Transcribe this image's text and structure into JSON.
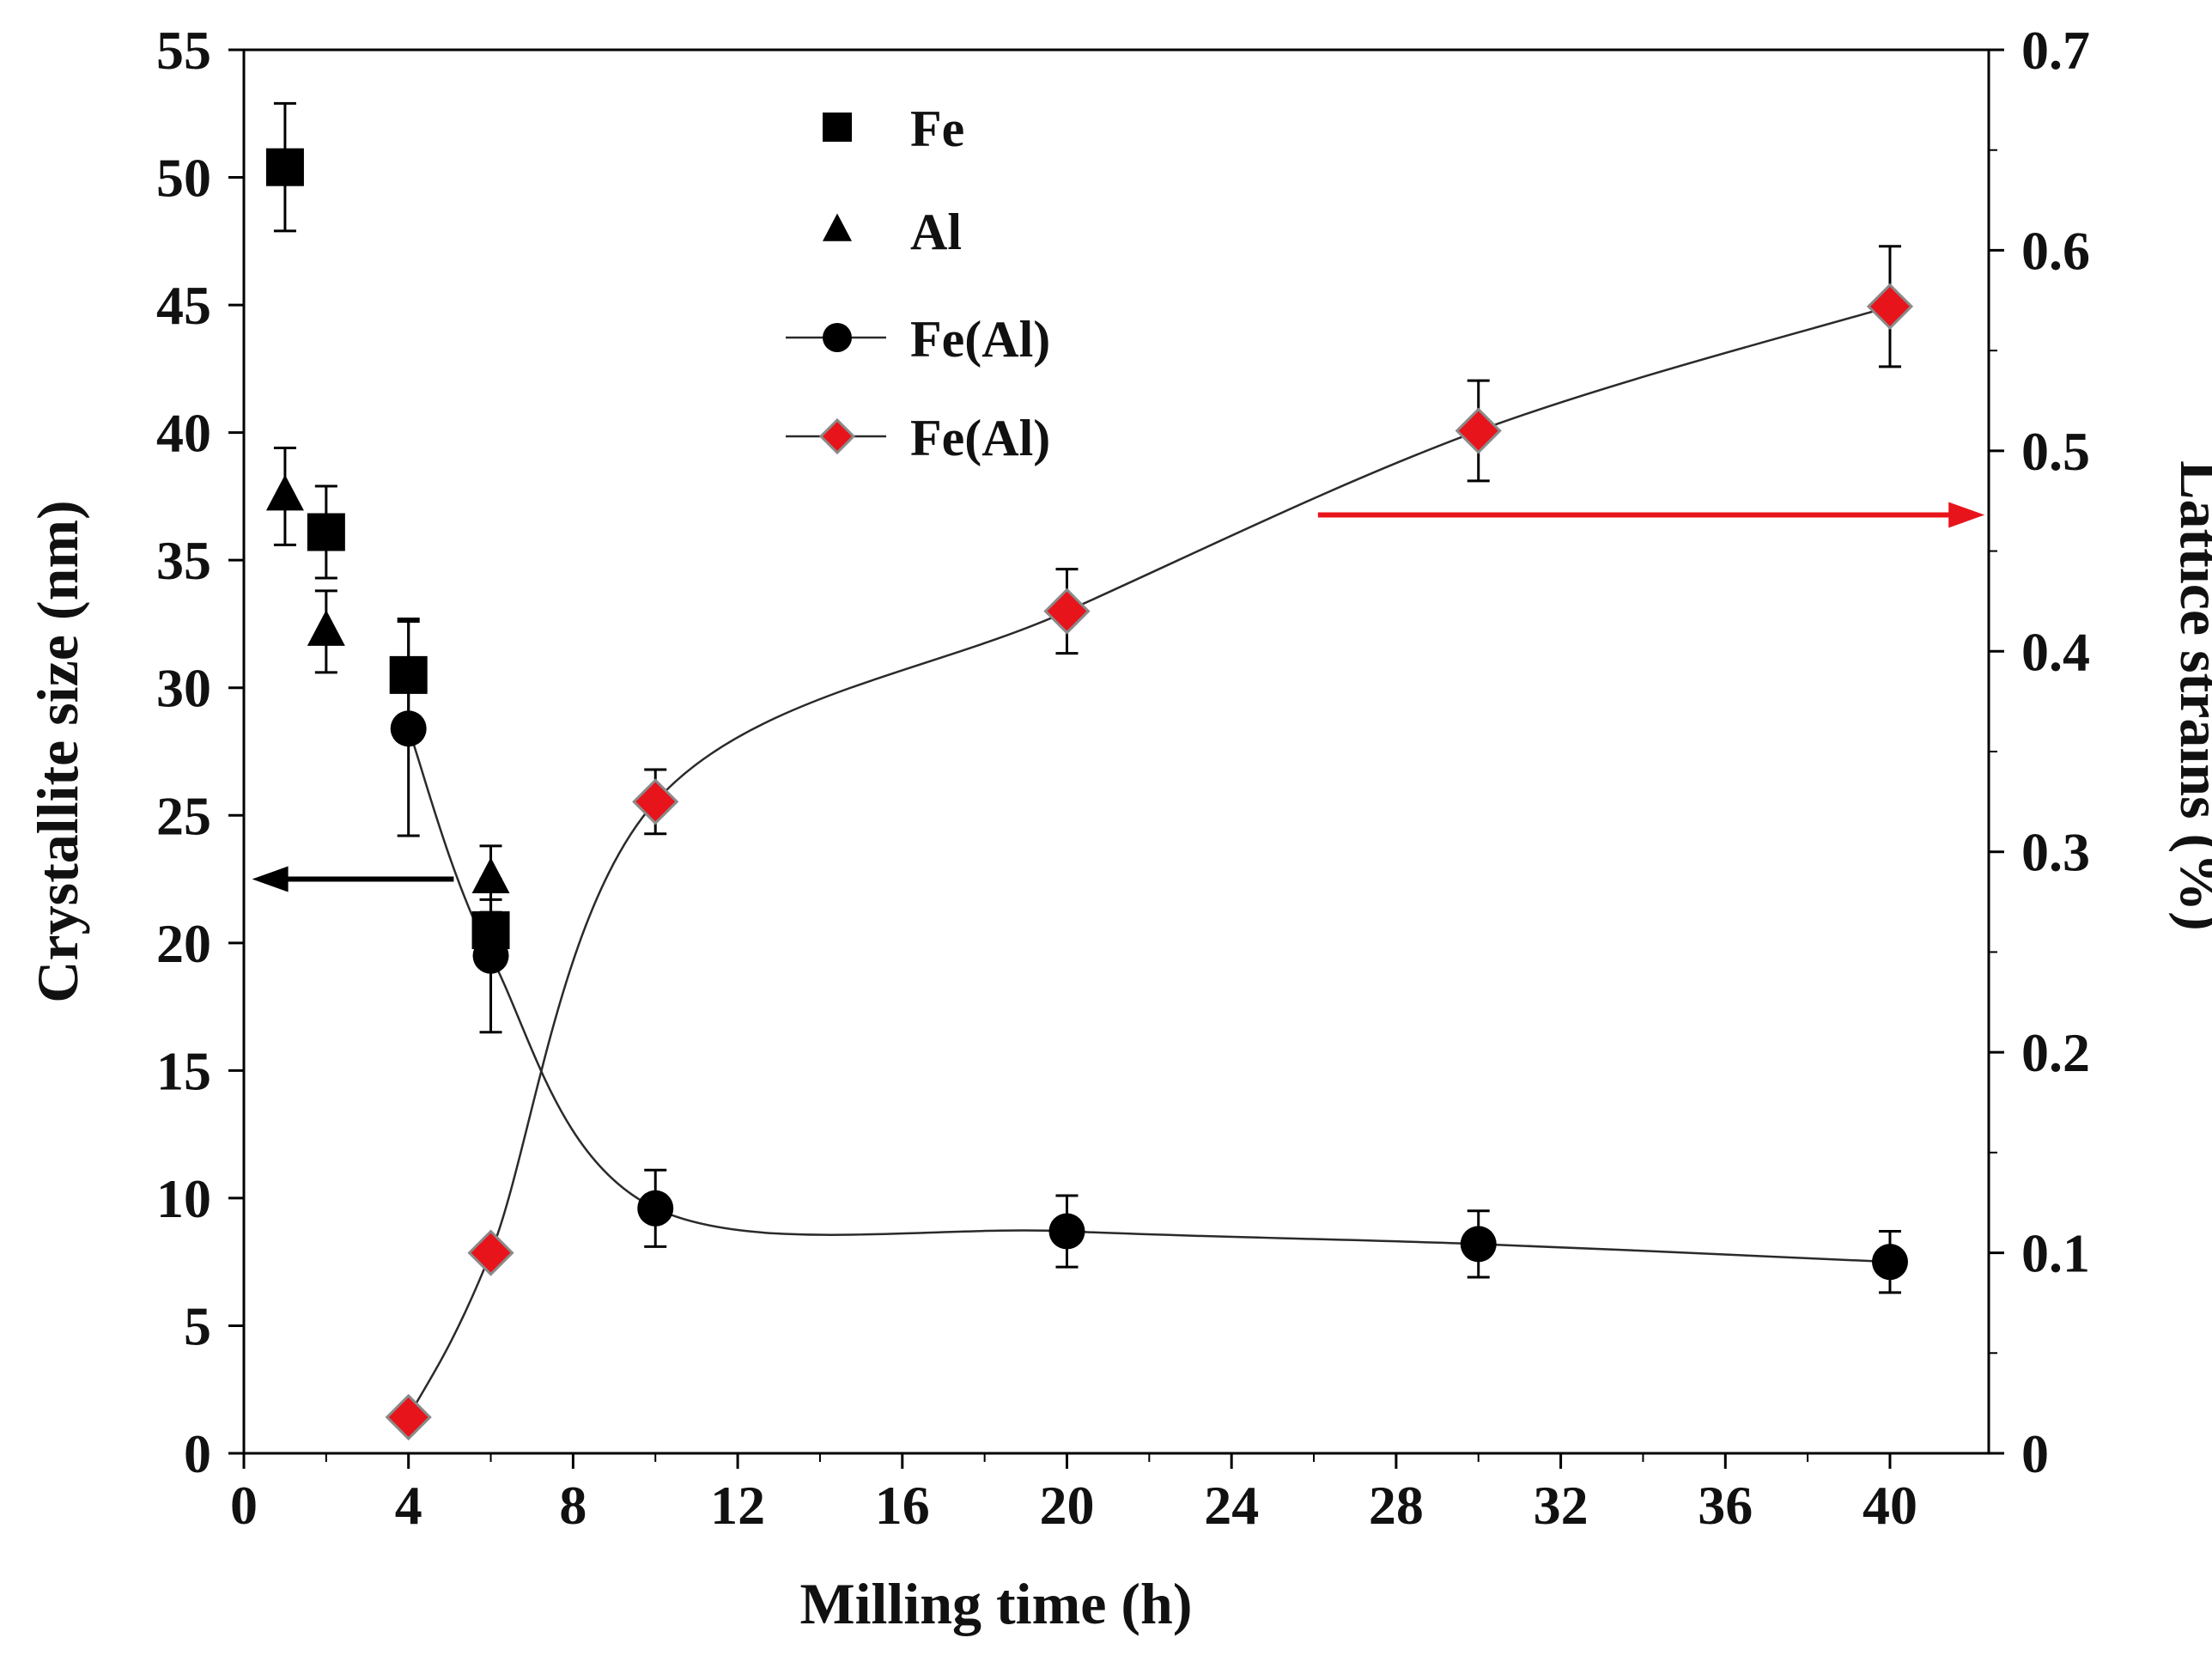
{
  "chart_data": {
    "type": "scatter",
    "xlabel": "Milling time (h)",
    "ylabel_left": "Crystallite size (nm)",
    "ylabel_right": "Lattice strains (%)",
    "xlim": [
      0,
      42.4
    ],
    "xticks": [
      0,
      4,
      8,
      12,
      16,
      20,
      24,
      28,
      32,
      36,
      40
    ],
    "ylim_left": [
      0,
      55
    ],
    "yticks_left": [
      0,
      5,
      10,
      15,
      20,
      25,
      30,
      35,
      40,
      45,
      50,
      55
    ],
    "ylim_right": [
      0,
      0.7
    ],
    "yticks_right": [
      0,
      0.1,
      0.2,
      0.3,
      0.4,
      0.5,
      0.6,
      0.7
    ],
    "series": [
      {
        "name": "Fe",
        "axis": "left",
        "marker": "square",
        "color": "#000000",
        "line": false,
        "points": [
          {
            "x": 1,
            "y": 50.4,
            "err": 2.5
          },
          {
            "x": 2,
            "y": 36.1,
            "err": 1.8
          },
          {
            "x": 4,
            "y": 30.5,
            "err": 2.2
          },
          {
            "x": 6,
            "y": 20.5,
            "err": 1.2
          }
        ]
      },
      {
        "name": "Al",
        "axis": "left",
        "marker": "triangle",
        "color": "#000000",
        "line": false,
        "points": [
          {
            "x": 1,
            "y": 37.5,
            "err": 1.9
          },
          {
            "x": 2,
            "y": 32.2,
            "err": 1.6
          },
          {
            "x": 6,
            "y": 22.5,
            "err": 1.3
          }
        ]
      },
      {
        "name": "Fe(Al)",
        "axis": "left",
        "marker": "circle",
        "color": "#000000",
        "line": true,
        "points": [
          {
            "x": 4,
            "y": 28.4,
            "err": 4.2
          },
          {
            "x": 6,
            "y": 19.5,
            "err": 3.0
          },
          {
            "x": 10,
            "y": 9.6,
            "err": 1.5
          },
          {
            "x": 20,
            "y": 8.7,
            "err": 1.4
          },
          {
            "x": 30,
            "y": 8.2,
            "err": 1.3
          },
          {
            "x": 40,
            "y": 7.5,
            "err": 1.2
          }
        ]
      },
      {
        "name": "Fe(Al)",
        "axis": "right",
        "marker": "diamond",
        "color": "#e8141b",
        "line": true,
        "points": [
          {
            "x": 4,
            "y": 0.018,
            "err": 0
          },
          {
            "x": 6,
            "y": 0.1,
            "err": 0
          },
          {
            "x": 10,
            "y": 0.325,
            "err": 0.016
          },
          {
            "x": 20,
            "y": 0.42,
            "err": 0.021
          },
          {
            "x": 30,
            "y": 0.51,
            "err": 0.025
          },
          {
            "x": 40,
            "y": 0.572,
            "err": 0.03
          }
        ]
      }
    ],
    "annotations": [
      {
        "type": "arrow",
        "direction": "left",
        "color": "#000000",
        "axis": "left",
        "y": 22.5,
        "x_from": 5.1,
        "x_to": 0.2
      },
      {
        "type": "arrow",
        "direction": "right",
        "color": "#e8141b",
        "axis": "right",
        "y": 0.468,
        "x_from": 26.1,
        "x_to": 42.3
      }
    ],
    "legend": {
      "placement": "top-center"
    }
  }
}
